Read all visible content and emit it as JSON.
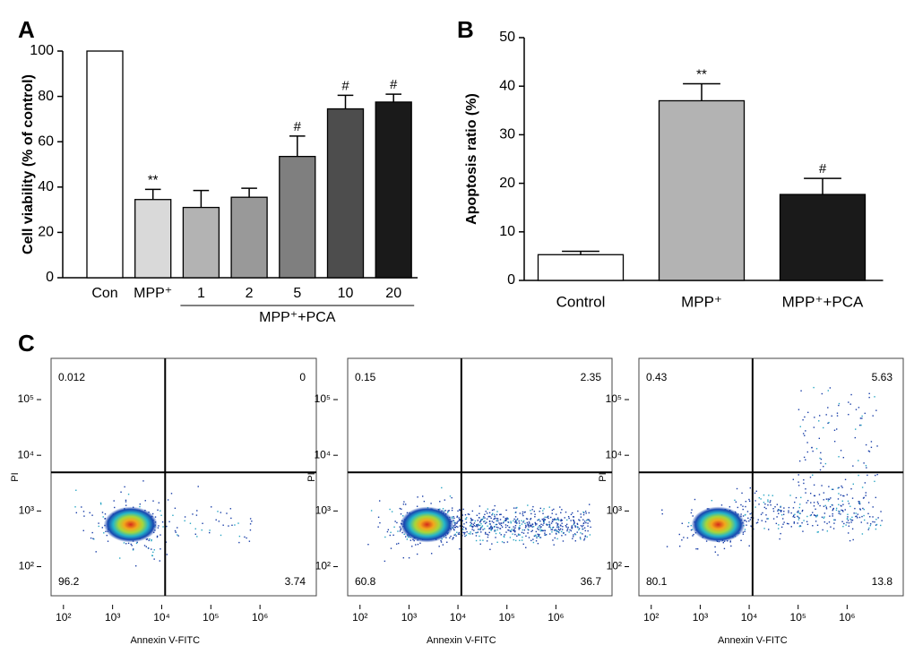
{
  "chart_data": [
    {
      "type": "bar",
      "panel_label": "A",
      "ylabel": "Cell viability (% of control)",
      "categories": [
        "Con",
        "MPP⁺",
        "1",
        "2",
        "5",
        "10",
        "20"
      ],
      "values": [
        100,
        34.5,
        31,
        35.5,
        53.5,
        74.5,
        77.5
      ],
      "errors": [
        0,
        4.5,
        7.5,
        4,
        9,
        6,
        3.5
      ],
      "annotations": [
        null,
        "**",
        null,
        null,
        "#",
        "#",
        "#"
      ],
      "colors": [
        "#ffffff",
        "#d9d9d9",
        "#b3b3b3",
        "#999999",
        "#7f7f7f",
        "#4d4d4d",
        "#1a1a1a"
      ],
      "group_label": "MPP⁺+PCA",
      "ylim": [
        0,
        100
      ],
      "yticks": [
        0,
        20,
        40,
        60,
        80,
        100
      ]
    },
    {
      "type": "bar",
      "panel_label": "B",
      "ylabel": "Apoptosis ratio (%)",
      "categories": [
        "Control",
        "MPP⁺",
        "MPP⁺+PCA"
      ],
      "values": [
        5.3,
        37,
        17.7
      ],
      "errors": [
        0.7,
        3.5,
        3.3
      ],
      "annotations": [
        null,
        "**",
        "#"
      ],
      "colors": [
        "#ffffff",
        "#b3b3b3",
        "#1a1a1a"
      ],
      "ylim": [
        0,
        50
      ],
      "yticks": [
        0,
        10,
        20,
        30,
        40,
        50
      ]
    },
    {
      "type": "scatter",
      "panel_label": "C",
      "xlabel": "Annexin V-FITC",
      "ylabel": "PI",
      "scale": "log",
      "quadrants": [
        0.012,
        0,
        96.2,
        3.74
      ],
      "xlim": [
        56,
        14000000
      ],
      "ylim": [
        30,
        550000
      ],
      "xticks": [
        {
          "value": 100,
          "label": "10²"
        },
        {
          "value": 1000,
          "label": "10³"
        },
        {
          "value": 10000,
          "label": "10⁴"
        },
        {
          "value": 100000,
          "label": "10⁵"
        },
        {
          "value": 1000000,
          "label": "10⁶"
        }
      ],
      "yticks": [
        {
          "value": 100,
          "label": "10²"
        },
        {
          "value": 1000,
          "label": "10³"
        },
        {
          "value": 10000,
          "label": "10⁴"
        },
        {
          "value": 100000,
          "label": "10⁵"
        }
      ]
    },
    {
      "type": "scatter",
      "xlabel": "Annexin V-FITC",
      "ylabel": "PI",
      "scale": "log",
      "quadrants": [
        0.15,
        2.35,
        60.8,
        36.7
      ],
      "xlim": [
        56,
        14000000
      ],
      "ylim": [
        30,
        550000
      ],
      "xticks": [
        {
          "value": 100,
          "label": "10²"
        },
        {
          "value": 1000,
          "label": "10³"
        },
        {
          "value": 10000,
          "label": "10⁴"
        },
        {
          "value": 100000,
          "label": "10⁵"
        },
        {
          "value": 1000000,
          "label": "10⁶"
        }
      ],
      "yticks": [
        {
          "value": 100,
          "label": "10²"
        },
        {
          "value": 1000,
          "label": "10³"
        },
        {
          "value": 10000,
          "label": "10⁴"
        },
        {
          "value": 100000,
          "label": "10⁵"
        }
      ]
    },
    {
      "type": "scatter",
      "xlabel": "Annexin V-FITC",
      "ylabel": "PI",
      "scale": "log",
      "quadrants": [
        0.43,
        5.63,
        80.1,
        13.8
      ],
      "xlim": [
        56,
        14000000
      ],
      "ylim": [
        30,
        550000
      ],
      "xticks": [
        {
          "value": 100,
          "label": "10²"
        },
        {
          "value": 1000,
          "label": "10³"
        },
        {
          "value": 10000,
          "label": "10⁴"
        },
        {
          "value": 100000,
          "label": "10⁵"
        },
        {
          "value": 1000000,
          "label": "10⁶"
        }
      ],
      "yticks": [
        {
          "value": 100,
          "label": "10²"
        },
        {
          "value": 1000,
          "label": "10³"
        },
        {
          "value": 10000,
          "label": "10⁴"
        },
        {
          "value": 100000,
          "label": "10⁵"
        }
      ]
    }
  ]
}
